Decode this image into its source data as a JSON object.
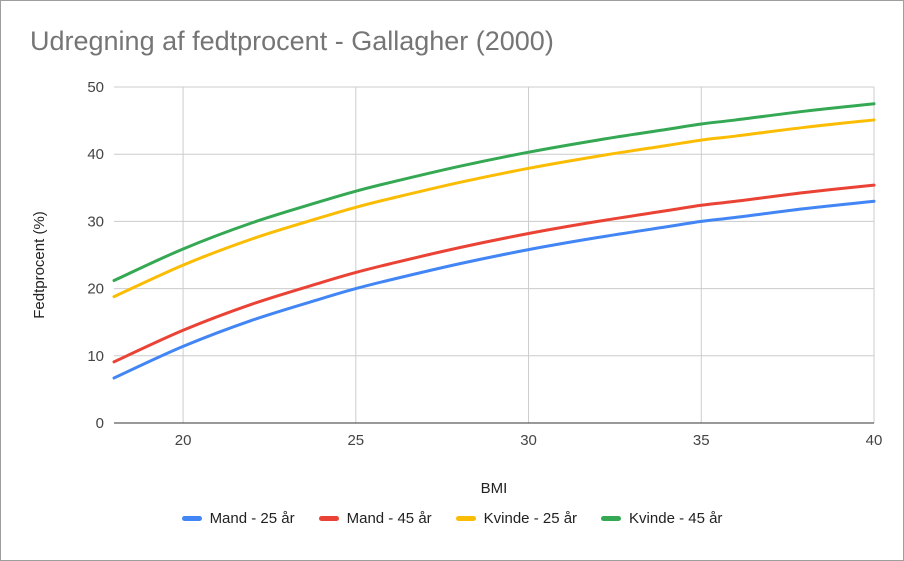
{
  "chart_data": {
    "type": "line",
    "title": "Udregning af fedtprocent - Gallagher (2000)",
    "xlabel": "BMI",
    "ylabel": "Fedtprocent (%)",
    "xlim": [
      18,
      40
    ],
    "ylim": [
      0,
      50
    ],
    "xticks": [
      20,
      25,
      30,
      35,
      40
    ],
    "yticks": [
      0,
      10,
      20,
      30,
      40,
      50
    ],
    "grid": true,
    "legend_position": "bottom",
    "x": [
      18,
      20,
      22,
      24,
      25,
      26,
      28,
      30,
      32,
      34,
      35,
      36,
      38,
      40
    ],
    "series": [
      {
        "name": "Mand - 25 år",
        "color": "#4285f4",
        "values": [
          6.7,
          11.4,
          15.3,
          18.5,
          20.0,
          21.3,
          23.7,
          25.8,
          27.6,
          29.2,
          30.0,
          30.6,
          31.9,
          33.0
        ]
      },
      {
        "name": "Mand - 45 år",
        "color": "#ea4335",
        "values": [
          9.1,
          13.8,
          17.7,
          20.9,
          22.4,
          23.7,
          26.1,
          28.2,
          30.0,
          31.6,
          32.4,
          33.0,
          34.3,
          35.4
        ]
      },
      {
        "name": "Kvinde - 25 år",
        "color": "#fbbc04",
        "values": [
          18.8,
          23.5,
          27.4,
          30.6,
          32.1,
          33.4,
          35.8,
          37.9,
          39.7,
          41.3,
          42.1,
          42.7,
          44.0,
          45.1
        ]
      },
      {
        "name": "Kvinde - 45 år",
        "color": "#34a853",
        "values": [
          21.2,
          25.9,
          29.8,
          33.0,
          34.5,
          35.8,
          38.2,
          40.3,
          42.1,
          43.7,
          44.5,
          45.1,
          46.4,
          47.5
        ]
      }
    ]
  }
}
